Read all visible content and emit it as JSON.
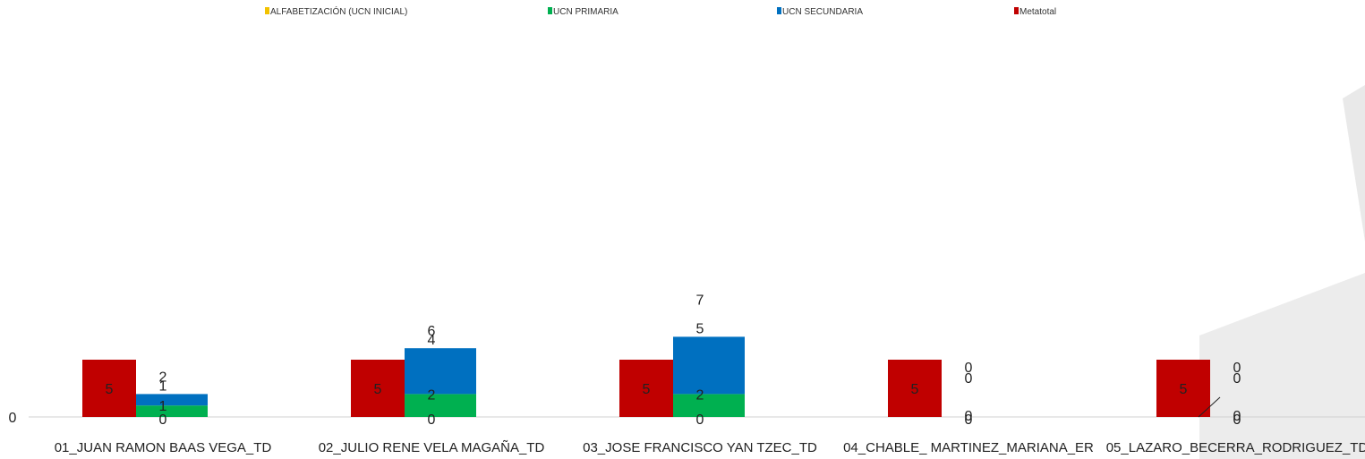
{
  "chart_data": {
    "type": "bar",
    "legend": [
      {
        "name": "ALFABETIZACIÓN (UCN INICIAL)",
        "color": "#f2c200"
      },
      {
        "name": "UCN PRIMARIA",
        "color": "#00b050"
      },
      {
        "name": "UCN SECUNDARIA",
        "color": "#0070c0"
      },
      {
        "name": "Metatotal",
        "color": "#c00000"
      }
    ],
    "legend_position": "top",
    "categories": [
      "01_JUAN RAMON BAAS VEGA_TD",
      "02_JULIO RENE VELA MAGAÑA_TD",
      "03_JOSE FRANCISCO YAN TZEC_TD",
      "04_CHABLE_ MARTINEZ_MARIANA_ER",
      "05_LAZARO_BECERRA_RODRIGUEZ_TD"
    ],
    "series": [
      {
        "name": "ALFABETIZACIÓN (UCN INICIAL)",
        "values": [
          0,
          0,
          0,
          0,
          0
        ]
      },
      {
        "name": "UCN PRIMARIA",
        "values": [
          1,
          2,
          2,
          0,
          0
        ]
      },
      {
        "name": "UCN SECUNDARIA",
        "values": [
          1,
          4,
          5,
          0,
          0
        ]
      },
      {
        "name": "Metatotal",
        "values": [
          5,
          5,
          5,
          5,
          5
        ]
      }
    ],
    "totals": [
      2,
      6,
      7,
      0,
      0
    ],
    "y_axis_label": "0",
    "ylim": [
      0,
      40
    ],
    "grid": false
  },
  "colors": {
    "metatotal": "#c00000",
    "primaria": "#00b050",
    "secundaria": "#0070c0",
    "inicial": "#f2c200",
    "watermark": "#e7e7e7"
  }
}
